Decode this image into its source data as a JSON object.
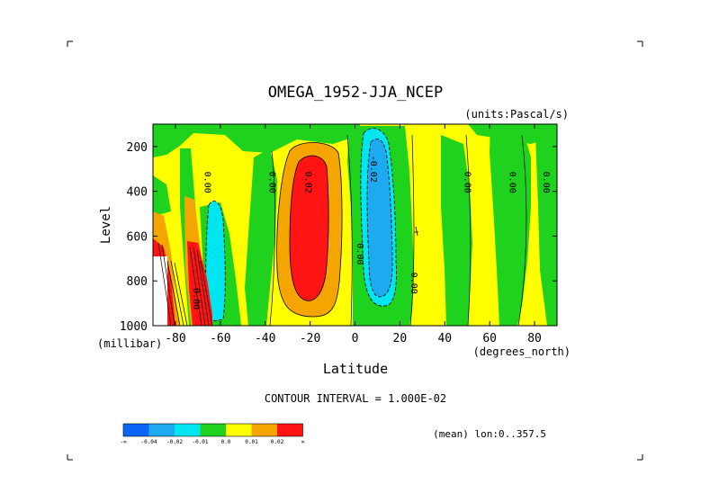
{
  "chart_data": {
    "type": "contour",
    "title": "OMEGA_1952-JJA_NCEP",
    "units": "(units:Pascal/s)",
    "xlabel": "Latitude",
    "xunit": "(degrees_north)",
    "ylabel": "Level",
    "yunit": "(millibar)",
    "x_ticks": [
      "-80",
      "-60",
      "-40",
      "-20",
      "0",
      "20",
      "40",
      "60",
      "80"
    ],
    "x_tick_values": [
      -80,
      -60,
      -40,
      -20,
      0,
      20,
      40,
      60,
      80
    ],
    "y_ticks": [
      "200",
      "400",
      "600",
      "800",
      "1000"
    ],
    "y_tick_values": [
      200,
      400,
      600,
      800,
      1000
    ],
    "xlim": [
      -90,
      90
    ],
    "ylim": [
      1000,
      100
    ],
    "contour_interval": "CONTOUR INTERVAL = 1.000E-02",
    "mean_note": "(mean) lon:0..357.5",
    "contour_labels": [
      {
        "text": "0.00",
        "lon": -67,
        "lev": 360
      },
      {
        "text": "0.00",
        "lon": -38,
        "lev": 360
      },
      {
        "text": "0.02",
        "lon": -22,
        "lev": 360
      },
      {
        "text": "-0.02",
        "lon": 7,
        "lev": 300
      },
      {
        "text": "0.00",
        "lon": 1,
        "lev": 680
      },
      {
        "text": "0.00",
        "lon": 25,
        "lev": 810
      },
      {
        "text": "0.00",
        "lon": 49,
        "lev": 360
      },
      {
        "text": "0.00",
        "lon": 69,
        "lev": 360
      },
      {
        "text": "0.00",
        "lon": 84,
        "lev": 360
      },
      {
        "text": "0.00",
        "lon": -72,
        "lev": 880
      }
    ],
    "legend": {
      "colors": [
        "#0a64f5",
        "#1eaaf0",
        "#00e6f0",
        "#1ed21e",
        "#ffff00",
        "#f5a500",
        "#ff1414"
      ],
      "labels": [
        "-∞",
        "-0.04",
        "-0.02",
        "-0.01",
        "0.0",
        "0.01",
        "0.02",
        "∞"
      ]
    }
  },
  "colors": {
    "green": "#1ed21e",
    "yellow": "#ffff00",
    "orange": "#f5a500",
    "red": "#ff1414",
    "cyan": "#00e6f0",
    "lightblue": "#1eaaf0",
    "blue": "#0a64f5"
  }
}
